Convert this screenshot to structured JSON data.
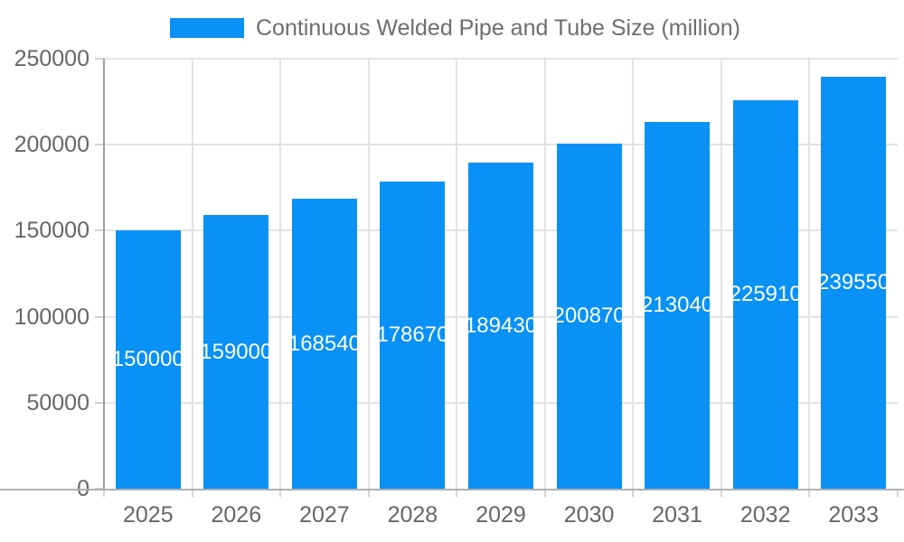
{
  "legend": {
    "label": "Continuous Welded Pipe and Tube Size (million)"
  },
  "chart_data": {
    "type": "bar",
    "title": "Continuous Welded Pipe and Tube Size (million)",
    "categories": [
      "2025",
      "2026",
      "2027",
      "2028",
      "2029",
      "2030",
      "2031",
      "2032",
      "2033"
    ],
    "values": [
      150000,
      159000,
      168540,
      178670,
      189430,
      200870,
      213040,
      225910,
      239550
    ],
    "xlabel": "",
    "ylabel": "",
    "ylim": [
      0,
      250000
    ],
    "yticks": [
      0,
      50000,
      100000,
      150000,
      200000,
      250000
    ],
    "grid": true,
    "legend_position": "top-center",
    "bar_labels_visible": true
  },
  "colors": {
    "bar": "#0a91f5",
    "bar_label": "#ffffff",
    "x_axis_line": "#b0b0b0",
    "y_axis_line": "#9e9e9e",
    "tick": "#d4d4d4",
    "gridline": "#e3e3e3",
    "axis_text": "#666666",
    "legend_text": "#6e6e6e",
    "background": "#ffffff"
  }
}
